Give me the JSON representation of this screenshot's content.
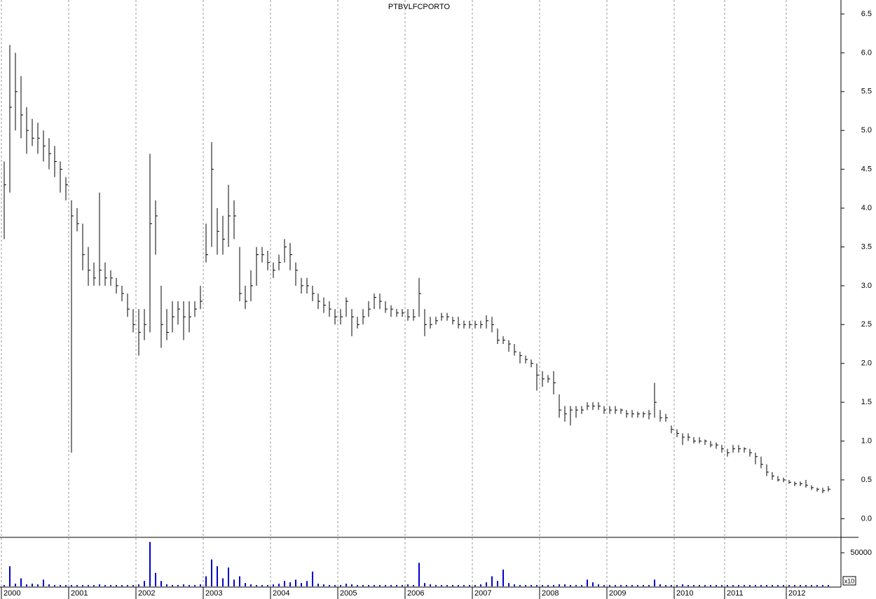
{
  "chart_data": [
    {
      "type": "ohlc",
      "title": "PTBVLFCPORTO",
      "color": "#000000",
      "grid": true,
      "categories": [
        "2000",
        null,
        null,
        null,
        null,
        null,
        null,
        null,
        null,
        null,
        null,
        null,
        "2001",
        null,
        null,
        null,
        null,
        null,
        null,
        null,
        null,
        null,
        null,
        null,
        "2002",
        null,
        null,
        null,
        null,
        null,
        null,
        null,
        null,
        null,
        null,
        null,
        "2003",
        null,
        null,
        null,
        null,
        null,
        null,
        null,
        null,
        null,
        null,
        null,
        "2004",
        null,
        null,
        null,
        null,
        null,
        null,
        null,
        null,
        null,
        null,
        null,
        "2005",
        null,
        null,
        null,
        null,
        null,
        null,
        null,
        null,
        null,
        null,
        null,
        "2006",
        null,
        null,
        null,
        null,
        null,
        null,
        null,
        null,
        null,
        null,
        null,
        "2007",
        null,
        null,
        null,
        null,
        null,
        null,
        null,
        null,
        null,
        null,
        null,
        "2008",
        null,
        null,
        null,
        null,
        null,
        null,
        null,
        null,
        null,
        null,
        null,
        "2009",
        null,
        null,
        null,
        null,
        null,
        null,
        null,
        null,
        null,
        null,
        null,
        "2010",
        null,
        null,
        null,
        null,
        null,
        null,
        null,
        null,
        "2011",
        null,
        null,
        null,
        null,
        null,
        null,
        null,
        null,
        null,
        null,
        "2012",
        null,
        null,
        null,
        null,
        null,
        null,
        null
      ],
      "high": [
        4.6,
        6.1,
        6.0,
        5.7,
        5.3,
        5.15,
        5.1,
        5.0,
        4.9,
        4.8,
        4.6,
        4.4,
        4.1,
        4.0,
        3.8,
        3.5,
        3.3,
        4.2,
        3.3,
        3.2,
        3.1,
        3.0,
        2.9,
        2.7,
        2.7,
        2.7,
        4.7,
        4.1,
        3.0,
        2.7,
        2.8,
        2.8,
        2.8,
        2.8,
        2.8,
        3.0,
        3.8,
        4.85,
        4.0,
        3.9,
        4.3,
        4.1,
        3.5,
        3.0,
        3.2,
        3.5,
        3.5,
        3.45,
        3.3,
        3.4,
        3.6,
        3.55,
        3.3,
        3.1,
        3.1,
        3.0,
        2.9,
        2.85,
        2.8,
        2.7,
        2.7,
        2.85,
        2.7,
        2.6,
        2.7,
        2.8,
        2.9,
        2.9,
        2.8,
        2.75,
        2.7,
        2.7,
        2.7,
        2.7,
        3.1,
        2.7,
        2.6,
        2.6,
        2.65,
        2.65,
        2.6,
        2.6,
        2.55,
        2.55,
        2.55,
        2.55,
        2.62,
        2.6,
        2.45,
        2.35,
        2.3,
        2.25,
        2.15,
        2.1,
        2.05,
        2.0,
        1.9,
        1.85,
        1.9,
        1.6,
        1.45,
        1.45,
        1.45,
        1.45,
        1.5,
        1.5,
        1.5,
        1.45,
        1.45,
        1.45,
        1.42,
        1.4,
        1.4,
        1.38,
        1.38,
        1.4,
        1.75,
        1.4,
        1.35,
        1.2,
        1.15,
        1.1,
        1.1,
        1.05,
        1.05,
        1.02,
        1.0,
        0.98,
        0.95,
        0.9,
        0.95,
        0.95,
        0.92,
        0.9,
        0.85,
        0.8,
        0.7,
        0.6,
        0.55,
        0.53,
        0.5,
        0.48,
        0.48,
        0.5,
        0.43,
        0.4,
        0.4,
        0.42
      ],
      "low": [
        3.6,
        4.2,
        5.0,
        4.9,
        4.7,
        4.8,
        4.7,
        4.6,
        4.5,
        4.4,
        4.2,
        4.1,
        0.85,
        3.7,
        3.2,
        3.0,
        3.0,
        3.0,
        3.0,
        3.0,
        2.9,
        2.8,
        2.6,
        2.4,
        2.1,
        2.3,
        2.4,
        3.4,
        2.2,
        2.3,
        2.4,
        2.5,
        2.3,
        2.4,
        2.6,
        2.7,
        3.3,
        3.5,
        3.4,
        3.4,
        3.5,
        3.6,
        2.8,
        2.7,
        2.8,
        3.0,
        3.3,
        3.2,
        3.1,
        3.2,
        3.3,
        3.2,
        3.0,
        2.9,
        2.9,
        2.8,
        2.7,
        2.65,
        2.6,
        2.5,
        2.5,
        2.6,
        2.35,
        2.45,
        2.5,
        2.6,
        2.7,
        2.7,
        2.65,
        2.6,
        2.6,
        2.6,
        2.55,
        2.55,
        2.6,
        2.35,
        2.45,
        2.5,
        2.55,
        2.55,
        2.5,
        2.45,
        2.45,
        2.45,
        2.45,
        2.45,
        2.45,
        2.4,
        2.25,
        2.25,
        2.15,
        2.1,
        2.0,
        2.0,
        1.95,
        1.65,
        1.7,
        1.75,
        1.6,
        1.3,
        1.25,
        1.2,
        1.3,
        1.35,
        1.4,
        1.4,
        1.4,
        1.35,
        1.35,
        1.35,
        1.35,
        1.3,
        1.3,
        1.3,
        1.3,
        1.28,
        1.3,
        1.25,
        1.25,
        1.1,
        1.05,
        0.95,
        1.0,
        0.97,
        0.97,
        0.95,
        0.92,
        0.9,
        0.85,
        0.8,
        0.85,
        0.85,
        0.85,
        0.8,
        0.7,
        0.65,
        0.55,
        0.5,
        0.48,
        0.47,
        0.45,
        0.42,
        0.42,
        0.4,
        0.37,
        0.35,
        0.33,
        0.35
      ],
      "close": [
        4.3,
        5.3,
        5.5,
        5.2,
        5.0,
        4.9,
        4.9,
        4.8,
        4.7,
        4.6,
        4.5,
        4.3,
        3.9,
        3.8,
        3.4,
        3.2,
        3.1,
        3.2,
        3.1,
        3.1,
        3.0,
        2.9,
        2.7,
        2.5,
        2.4,
        2.5,
        3.8,
        3.9,
        2.5,
        2.4,
        2.6,
        2.7,
        2.6,
        2.6,
        2.7,
        2.8,
        3.4,
        4.5,
        3.7,
        3.6,
        3.9,
        3.9,
        2.9,
        2.8,
        3.0,
        3.4,
        3.4,
        3.3,
        3.2,
        3.3,
        3.5,
        3.4,
        3.2,
        3.0,
        3.0,
        2.9,
        2.8,
        2.75,
        2.7,
        2.6,
        2.6,
        2.8,
        2.6,
        2.5,
        2.6,
        2.7,
        2.85,
        2.8,
        2.7,
        2.7,
        2.65,
        2.65,
        2.6,
        2.6,
        2.9,
        2.5,
        2.5,
        2.55,
        2.6,
        2.6,
        2.55,
        2.5,
        2.5,
        2.5,
        2.5,
        2.5,
        2.55,
        2.5,
        2.3,
        2.3,
        2.25,
        2.15,
        2.1,
        2.05,
        2.0,
        1.85,
        1.8,
        1.8,
        1.75,
        1.4,
        1.35,
        1.4,
        1.4,
        1.4,
        1.45,
        1.45,
        1.45,
        1.4,
        1.4,
        1.4,
        1.4,
        1.35,
        1.35,
        1.35,
        1.35,
        1.35,
        1.5,
        1.3,
        1.3,
        1.15,
        1.1,
        1.05,
        1.05,
        1.0,
        1.0,
        1.0,
        0.95,
        0.95,
        0.9,
        0.85,
        0.9,
        0.9,
        0.9,
        0.85,
        0.8,
        0.7,
        0.6,
        0.55,
        0.5,
        0.5,
        0.47,
        0.45,
        0.45,
        0.43,
        0.4,
        0.38,
        0.36,
        0.38
      ],
      "ylim": [
        -0.24,
        6.68
      ],
      "yticks": [
        {
          "value": 0,
          "label": "0.0"
        },
        0.5,
        {
          "value": 1,
          "label": "1.0"
        },
        1.5,
        {
          "value": 2,
          "label": "2.0"
        },
        2.5,
        {
          "value": 3,
          "label": "3.0"
        },
        3.5,
        {
          "value": 4,
          "label": "4.0"
        },
        4.5,
        {
          "value": 5,
          "label": "5.0"
        },
        5.5,
        {
          "value": 6,
          "label": "6.0"
        },
        6.5
      ]
    },
    {
      "type": "bar",
      "color": "#0000cc",
      "annotation": "x10",
      "values": [
        2000,
        30000,
        4000,
        12000,
        3000,
        4000,
        3000,
        10000,
        3000,
        2000,
        2000,
        2000,
        2000,
        2000,
        2000,
        2000,
        2000,
        3000,
        2000,
        2000,
        2000,
        2000,
        2000,
        2000,
        3000,
        8000,
        66000,
        20000,
        8000,
        3000,
        2000,
        2000,
        3000,
        2000,
        2000,
        3000,
        15000,
        40000,
        30000,
        12000,
        28000,
        10000,
        15000,
        5000,
        3000,
        2000,
        2000,
        2000,
        3000,
        4000,
        8000,
        6000,
        10000,
        5000,
        8000,
        22000,
        4000,
        3000,
        2000,
        2000,
        2000,
        4000,
        3000,
        2000,
        2000,
        2000,
        2000,
        2000,
        2000,
        2000,
        2000,
        2000,
        3000,
        2000,
        35000,
        5000,
        3000,
        2000,
        2000,
        2000,
        2000,
        2000,
        2000,
        2000,
        2000,
        3000,
        6000,
        15000,
        8000,
        25000,
        5000,
        3000,
        2000,
        2000,
        2000,
        2000,
        2000,
        2000,
        2000,
        3000,
        3000,
        2000,
        2000,
        2000,
        10000,
        6000,
        3000,
        2000,
        2000,
        2000,
        2000,
        2000,
        2000,
        2000,
        2000,
        2000,
        10000,
        3000,
        2000,
        2000,
        2000,
        3000,
        2000,
        2000,
        2000,
        2000,
        2000,
        2000,
        2000,
        2000,
        2000,
        2000,
        2000,
        2000,
        2000,
        2000,
        2000,
        2000,
        2000,
        2000,
        2000,
        2000,
        2000,
        2000,
        2000,
        2000,
        2000,
        2000
      ],
      "ylim": [
        0,
        72900
      ],
      "yticks": [
        50000
      ]
    }
  ]
}
